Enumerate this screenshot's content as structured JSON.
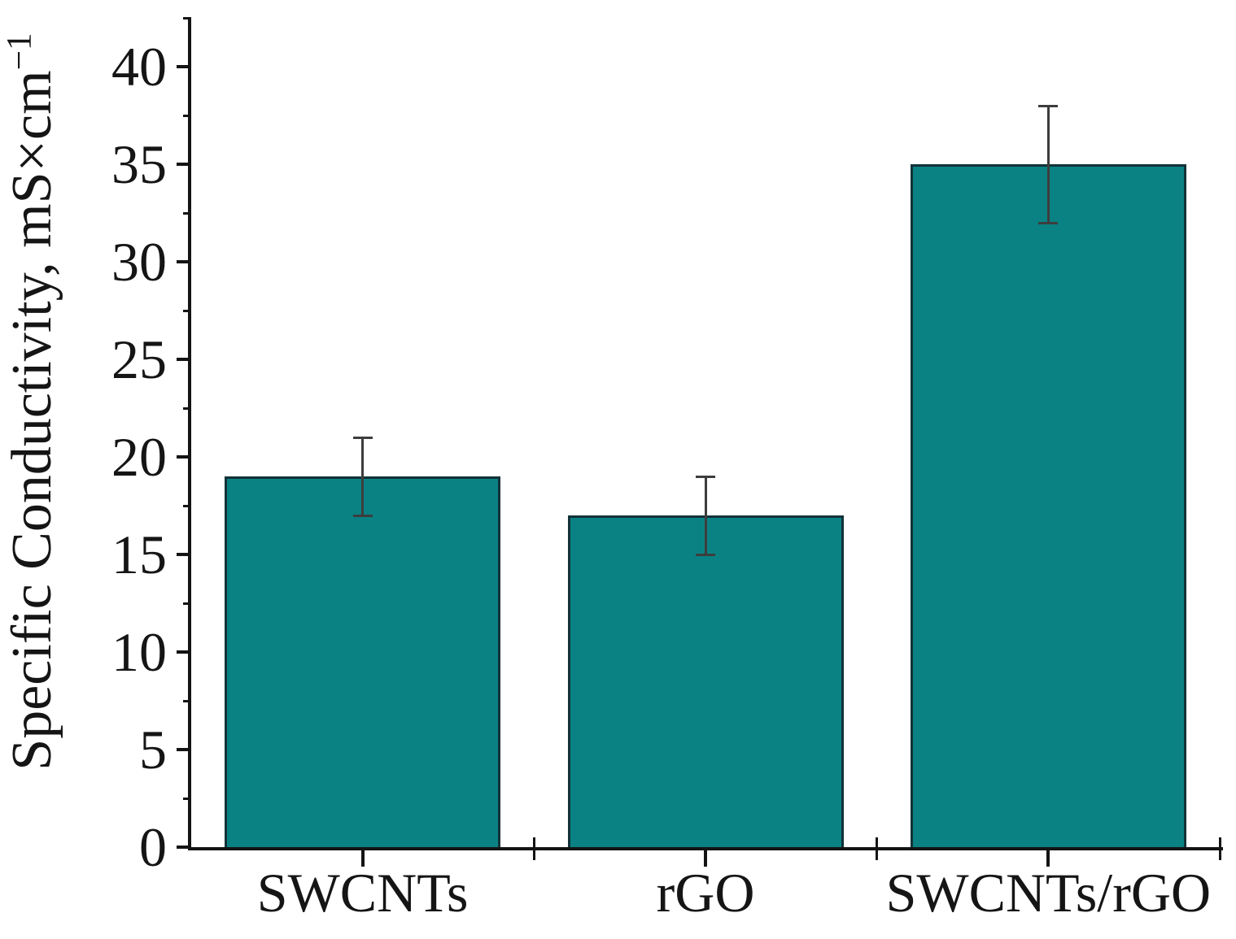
{
  "chart_data": {
    "type": "bar",
    "categories": [
      "SWCNTs",
      "rGO",
      "SWCNTs/rGO"
    ],
    "values": [
      19,
      17,
      35
    ],
    "errors": [
      2,
      2,
      3
    ],
    "series_note": "single series, error bars symmetric",
    "ylabel_main": "Specific Conductivity, mS×cm",
    "ylabel_sup": "−1",
    "xlabel": "",
    "title": "",
    "ylim": [
      0,
      42.5
    ],
    "yticks": [
      0,
      5,
      10,
      15,
      20,
      25,
      30,
      35,
      40
    ],
    "minor_tick_step": 2.5,
    "grid": false,
    "legend_position": "none",
    "colors": {
      "bar_fill": "#0a8284",
      "bar_edge": "#123238",
      "error_bar": "#3d3d3d",
      "axis": "#141414",
      "text": "#151515",
      "background": "#ffffff"
    }
  }
}
